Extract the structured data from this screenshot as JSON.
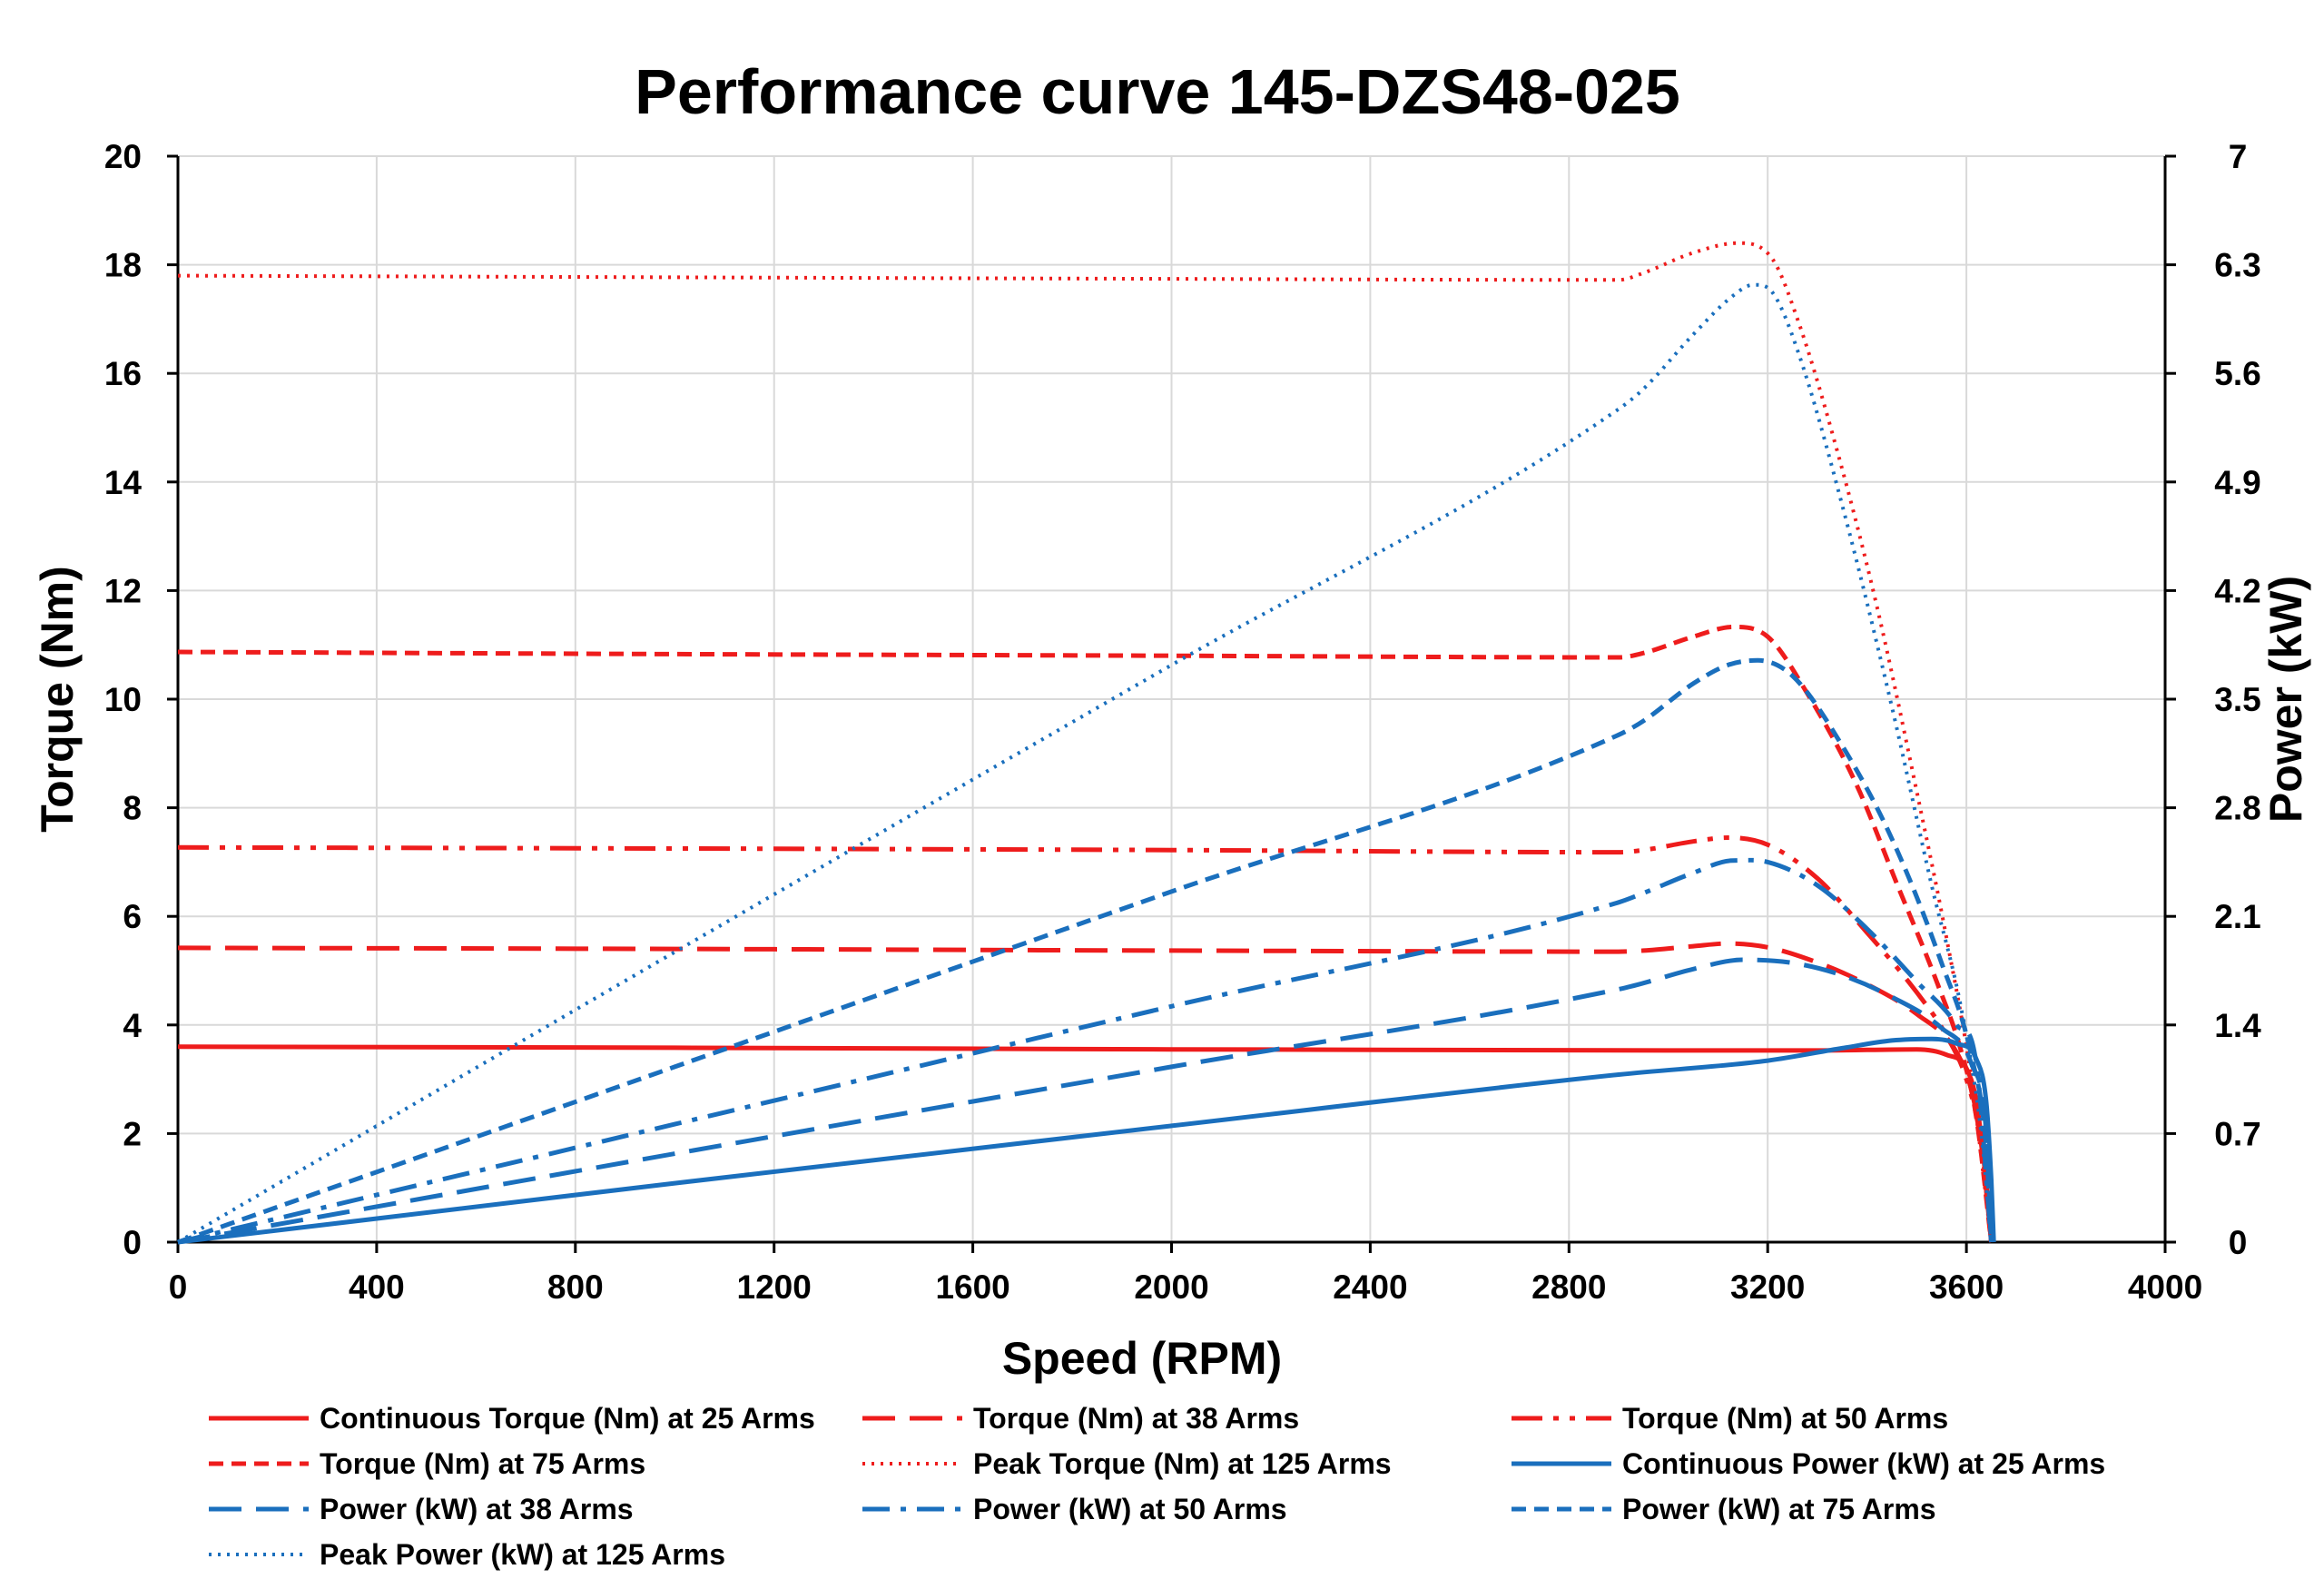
{
  "chart_data": {
    "type": "line",
    "title": "Performance curve 145-DZS48-025",
    "xlabel": "Speed (RPM)",
    "ylabel": "Torque (Nm)",
    "y2label": "Power (kW)",
    "xlim": [
      0,
      4000
    ],
    "ylim": [
      0,
      20
    ],
    "y2lim": [
      0,
      7
    ],
    "xticks": [
      "0",
      "400",
      "800",
      "1200",
      "1600",
      "2000",
      "2400",
      "2800",
      "3200",
      "3600",
      "4000"
    ],
    "yticks": [
      "0",
      "2",
      "4",
      "6",
      "8",
      "10",
      "12",
      "14",
      "16",
      "18",
      "20"
    ],
    "y2ticks": [
      "0",
      "0.7",
      "1.4",
      "2.1",
      "2.8",
      "3.5",
      "4.2",
      "4.9",
      "5.6",
      "6.3",
      "7"
    ],
    "grid": true,
    "legend_position": "bottom",
    "colors": {
      "torque": "#ee1c1c",
      "power": "#1a6fbd"
    },
    "series": [
      {
        "name": "Continuous Torque (Nm) at 25 Arms",
        "axis": "left",
        "color": "#ee1c1c",
        "style": "solid",
        "points": [
          [
            0,
            3.6
          ],
          [
            1000,
            3.58
          ],
          [
            2000,
            3.55
          ],
          [
            3000,
            3.53
          ],
          [
            3300,
            3.53
          ],
          [
            3500,
            3.55
          ],
          [
            3560,
            3.45
          ],
          [
            3600,
            3.2
          ],
          [
            3620,
            2.6
          ],
          [
            3635,
            1.5
          ],
          [
            3645,
            0.6
          ],
          [
            3650,
            0
          ]
        ]
      },
      {
        "name": "Torque (Nm) at 38 Arms",
        "axis": "left",
        "color": "#ee1c1c",
        "style": "longdash",
        "points": [
          [
            0,
            5.42
          ],
          [
            1000,
            5.4
          ],
          [
            2000,
            5.37
          ],
          [
            2900,
            5.35
          ],
          [
            2950,
            5.37
          ],
          [
            3050,
            5.45
          ],
          [
            3120,
            5.5
          ],
          [
            3200,
            5.43
          ],
          [
            3300,
            5.15
          ],
          [
            3400,
            4.75
          ],
          [
            3500,
            4.2
          ],
          [
            3580,
            3.5
          ],
          [
            3610,
            2.8
          ],
          [
            3630,
            1.8
          ],
          [
            3650,
            0
          ]
        ]
      },
      {
        "name": "Torque (Nm) at 50 Arms",
        "axis": "left",
        "color": "#ee1c1c",
        "style": "dashdotdot",
        "points": [
          [
            0,
            7.27
          ],
          [
            1000,
            7.25
          ],
          [
            2000,
            7.22
          ],
          [
            2900,
            7.18
          ],
          [
            2950,
            7.22
          ],
          [
            3050,
            7.38
          ],
          [
            3120,
            7.45
          ],
          [
            3200,
            7.32
          ],
          [
            3300,
            6.7
          ],
          [
            3400,
            5.7
          ],
          [
            3500,
            4.6
          ],
          [
            3560,
            3.8
          ],
          [
            3600,
            3.0
          ],
          [
            3630,
            1.8
          ],
          [
            3650,
            0
          ]
        ]
      },
      {
        "name": "Torque (Nm) at 75 Arms",
        "axis": "left",
        "color": "#ee1c1c",
        "style": "shortdash",
        "points": [
          [
            0,
            10.87
          ],
          [
            1000,
            10.83
          ],
          [
            2000,
            10.8
          ],
          [
            2900,
            10.77
          ],
          [
            2950,
            10.85
          ],
          [
            3050,
            11.15
          ],
          [
            3130,
            11.33
          ],
          [
            3200,
            11.15
          ],
          [
            3280,
            10.1
          ],
          [
            3380,
            8.4
          ],
          [
            3460,
            6.6
          ],
          [
            3540,
            4.8
          ],
          [
            3590,
            3.5
          ],
          [
            3620,
            2.3
          ],
          [
            3650,
            0
          ]
        ]
      },
      {
        "name": "Peak Torque (Nm) at 125 Arms",
        "axis": "left",
        "color": "#ee1c1c",
        "style": "dotted",
        "points": [
          [
            0,
            17.8
          ],
          [
            1000,
            17.77
          ],
          [
            2000,
            17.74
          ],
          [
            2900,
            17.72
          ],
          [
            2950,
            17.85
          ],
          [
            3050,
            18.22
          ],
          [
            3140,
            18.4
          ],
          [
            3210,
            18.1
          ],
          [
            3260,
            17.0
          ],
          [
            3330,
            14.9
          ],
          [
            3420,
            11.7
          ],
          [
            3500,
            8.3
          ],
          [
            3560,
            5.6
          ],
          [
            3610,
            3.0
          ],
          [
            3650,
            0
          ]
        ]
      },
      {
        "name": "Continuous Power (kW) at 25 Arms",
        "axis": "right",
        "color": "#1a6fbd",
        "style": "solid",
        "points": [
          [
            0,
            0
          ],
          [
            1000,
            0.38
          ],
          [
            2000,
            0.75
          ],
          [
            2900,
            1.08
          ],
          [
            3200,
            1.17
          ],
          [
            3350,
            1.25
          ],
          [
            3450,
            1.3
          ],
          [
            3530,
            1.31
          ],
          [
            3580,
            1.28
          ],
          [
            3620,
            1.18
          ],
          [
            3640,
            0.9
          ],
          [
            3650,
            0.4
          ],
          [
            3655,
            0
          ]
        ]
      },
      {
        "name": "Power (kW) at 38 Arms",
        "axis": "right",
        "color": "#1a6fbd",
        "style": "longdash",
        "points": [
          [
            0,
            0
          ],
          [
            1000,
            0.57
          ],
          [
            2000,
            1.13
          ],
          [
            2900,
            1.63
          ],
          [
            2950,
            1.67
          ],
          [
            3050,
            1.76
          ],
          [
            3150,
            1.82
          ],
          [
            3250,
            1.8
          ],
          [
            3350,
            1.72
          ],
          [
            3450,
            1.58
          ],
          [
            3550,
            1.38
          ],
          [
            3610,
            1.15
          ],
          [
            3640,
            0.7
          ],
          [
            3650,
            0
          ]
        ]
      },
      {
        "name": "Power (kW) at 50 Arms",
        "axis": "right",
        "color": "#1a6fbd",
        "style": "dashdot",
        "points": [
          [
            0,
            0
          ],
          [
            1000,
            0.76
          ],
          [
            2000,
            1.52
          ],
          [
            2900,
            2.19
          ],
          [
            2950,
            2.25
          ],
          [
            3050,
            2.38
          ],
          [
            3130,
            2.46
          ],
          [
            3200,
            2.45
          ],
          [
            3300,
            2.3
          ],
          [
            3400,
            2.02
          ],
          [
            3500,
            1.68
          ],
          [
            3580,
            1.4
          ],
          [
            3620,
            1.15
          ],
          [
            3650,
            0
          ]
        ]
      },
      {
        "name": "Power (kW) at 75 Arms",
        "axis": "right",
        "color": "#1a6fbd",
        "style": "shortdash",
        "points": [
          [
            0,
            0
          ],
          [
            1000,
            1.13
          ],
          [
            2000,
            2.26
          ],
          [
            2900,
            3.27
          ],
          [
            2950,
            3.36
          ],
          [
            3050,
            3.6
          ],
          [
            3120,
            3.72
          ],
          [
            3180,
            3.75
          ],
          [
            3250,
            3.65
          ],
          [
            3350,
            3.2
          ],
          [
            3450,
            2.6
          ],
          [
            3550,
            1.8
          ],
          [
            3610,
            1.2
          ],
          [
            3640,
            0.6
          ],
          [
            3650,
            0
          ]
        ]
      },
      {
        "name": "Peak Power (kW) at 125 Arms",
        "axis": "right",
        "color": "#1a6fbd",
        "style": "dotted",
        "points": [
          [
            0,
            0
          ],
          [
            1000,
            1.87
          ],
          [
            2000,
            3.72
          ],
          [
            2900,
            5.37
          ],
          [
            2950,
            5.5
          ],
          [
            3050,
            5.85
          ],
          [
            3130,
            6.1
          ],
          [
            3170,
            6.17
          ],
          [
            3210,
            6.12
          ],
          [
            3260,
            5.75
          ],
          [
            3350,
            4.75
          ],
          [
            3450,
            3.45
          ],
          [
            3530,
            2.3
          ],
          [
            3590,
            1.5
          ],
          [
            3630,
            0.7
          ],
          [
            3650,
            0
          ]
        ]
      }
    ]
  }
}
